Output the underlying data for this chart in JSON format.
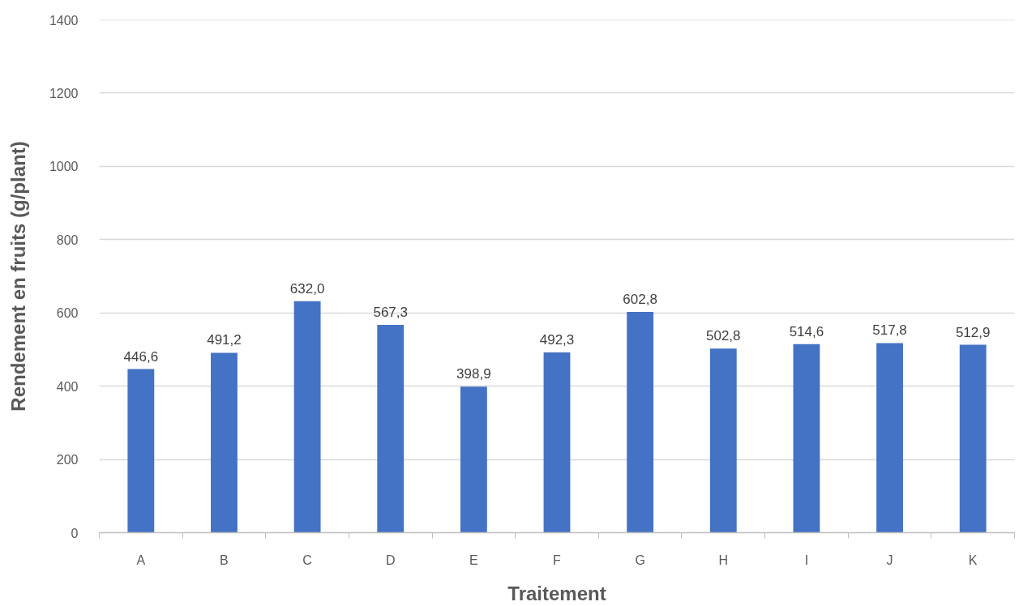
{
  "chart_data": {
    "type": "bar",
    "xlabel": "Traitement",
    "ylabel": "Rendement en fruits (g/plant)",
    "categories": [
      "A",
      "B",
      "C",
      "D",
      "E",
      "F",
      "G",
      "H",
      "I",
      "J",
      "K"
    ],
    "values": [
      446.6,
      491.2,
      632.0,
      567.3,
      398.9,
      492.3,
      602.8,
      502.8,
      514.6,
      517.8,
      512.9
    ],
    "value_labels": [
      "446,6",
      "491,2",
      "632,0",
      "567,3",
      "398,9",
      "492,3",
      "602,8",
      "502,8",
      "514,6",
      "517,8",
      "512,9"
    ],
    "color": "#4472c4",
    "ylim": [
      0,
      1400
    ],
    "yticks": [
      0,
      200,
      400,
      600,
      800,
      1000,
      1200,
      1400
    ],
    "grid": "y"
  }
}
